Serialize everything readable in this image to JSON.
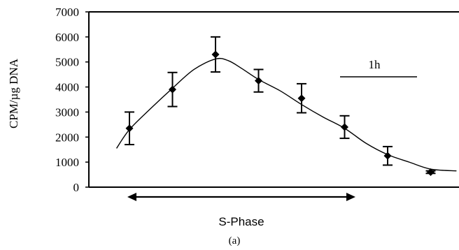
{
  "chart_data": {
    "type": "scatter",
    "ylabel": "CPM/µg DNA",
    "ylim": [
      0,
      7000
    ],
    "y_ticks": [
      0,
      1000,
      2000,
      3000,
      4000,
      5000,
      6000,
      7000
    ],
    "y_tick_labels": [
      "0",
      "1000",
      "2000",
      "3000",
      "4000",
      "5000",
      "6000",
      "7000"
    ],
    "grid": false,
    "series": [
      {
        "points": [
          {
            "x": 1,
            "y": 2350,
            "err": 650
          },
          {
            "x": 2,
            "y": 3900,
            "err": 680
          },
          {
            "x": 3,
            "y": 5300,
            "err": 700
          },
          {
            "x": 4,
            "y": 4250,
            "err": 450
          },
          {
            "x": 5,
            "y": 3550,
            "err": 580
          },
          {
            "x": 6,
            "y": 2400,
            "err": 450
          },
          {
            "x": 7,
            "y": 1250,
            "err": 370
          },
          {
            "x": 8,
            "y": 600,
            "err": 50
          }
        ]
      }
    ],
    "annotations": {
      "scale_bar_label": "1h",
      "phase_label": "S-Phase",
      "panel_label": "(a)"
    }
  }
}
